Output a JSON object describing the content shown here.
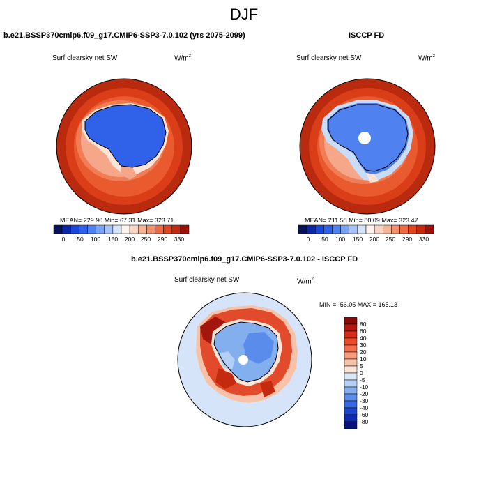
{
  "figure": {
    "title": "DJF"
  },
  "panels": {
    "model": {
      "title": "b.e21.BSSP370cmip6.f09_g17.CMIP6-SSP3-7.0.102 (yrs 2075-2099)",
      "variable": "Surf clearsky net SW",
      "units": "W/m",
      "units_exp": "2",
      "stats": "MEAN= 229.90  Min=  67.31  Max= 323.71"
    },
    "obs": {
      "title": "ISCCP FD",
      "variable": "Surf clearsky net SW",
      "units": "W/m",
      "units_exp": "2",
      "stats": "MEAN= 211.58  Min=  80.09  Max= 323.47"
    },
    "diff": {
      "title": "b.e21.BSSP370cmip6.f09_g17.CMIP6-SSP3-7.0.102 - ISCCP FD",
      "variable": "Surf clearsky net SW",
      "units": "W/m",
      "units_exp": "2",
      "stats": "MIN = -56.05 MAX = 165.13"
    }
  },
  "colorbar_abs": {
    "colors": [
      "#08135a",
      "#0c2aa8",
      "#1a47d6",
      "#2f62e8",
      "#4f82f0",
      "#7aa3f4",
      "#a8c4f7",
      "#d6e4f9",
      "#fdf3ea",
      "#fad6c2",
      "#f6b596",
      "#f2906b",
      "#ec6a45",
      "#e0461f",
      "#c42a10",
      "#9c1208"
    ],
    "labels": [
      "0",
      "50",
      "100",
      "150",
      "200",
      "250",
      "290",
      "330"
    ]
  },
  "colorbar_diff": {
    "colors": [
      "#8b0a08",
      "#b3170d",
      "#d62a16",
      "#ea4a2b",
      "#f26f4c",
      "#f59a7a",
      "#f8c2a8",
      "#fbe3d6",
      "#d9e8f8",
      "#b3cff5",
      "#84afef",
      "#5a8ceb",
      "#3668e2",
      "#1d45d0",
      "#0e2ab0",
      "#06127a"
    ],
    "labels": [
      "80",
      "60",
      "40",
      "30",
      "20",
      "10",
      "5",
      "0",
      "-5",
      "-10",
      "-20",
      "-30",
      "-40",
      "-60",
      "-80"
    ]
  }
}
